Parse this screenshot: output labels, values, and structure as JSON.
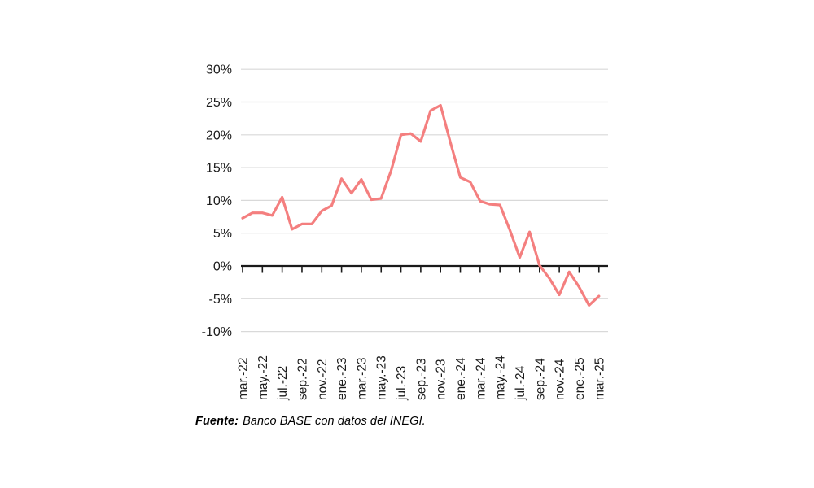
{
  "chart_data": {
    "type": "line",
    "title": "",
    "x": [
      "mar.-22",
      "abr.-22",
      "may.-22",
      "jun.-22",
      "jul.-22",
      "ago.-22",
      "sep.-22",
      "oct.-22",
      "nov.-22",
      "dic.-22",
      "ene.-23",
      "feb.-23",
      "mar.-23",
      "abr.-23",
      "may.-23",
      "jun.-23",
      "jul.-23",
      "ago.-23",
      "sep.-23",
      "oct.-23",
      "nov.-23",
      "dic.-23",
      "ene.-24",
      "feb.-24",
      "mar.-24",
      "abr.-24",
      "may.-24",
      "jun.-24",
      "jul.-24",
      "ago.-24",
      "sep.-24",
      "oct.-24",
      "nov.-24",
      "dic.-24",
      "ene.-25",
      "feb.-25",
      "mar.-25"
    ],
    "values": [
      7.3,
      8.1,
      8.1,
      7.7,
      10.5,
      5.6,
      6.4,
      6.4,
      8.4,
      9.2,
      13.3,
      11.1,
      13.2,
      10.1,
      10.3,
      14.5,
      20.0,
      20.2,
      19.0,
      23.7,
      24.5,
      18.8,
      13.5,
      12.8,
      9.9,
      9.4,
      9.3,
      5.5,
      1.3,
      5.2,
      0.1,
      -1.9,
      -4.4,
      -0.9,
      -3.2,
      -6.0,
      -4.6
    ],
    "x_tick_labels": [
      "mar.-22",
      "may.-22",
      "jul.-22",
      "sep.-22",
      "nov.-22",
      "ene.-23",
      "mar.-23",
      "may.-23",
      "jul.-23",
      "sep.-23",
      "nov.-23",
      "ene.-24",
      "mar.-24",
      "may.-24",
      "jul.-24",
      "sep.-24",
      "nov.-24",
      "ene.-25",
      "mar.-25"
    ],
    "y_ticks": [
      30,
      25,
      20,
      15,
      10,
      5,
      0,
      -5,
      -10
    ],
    "y_tick_labels": [
      "30%",
      "25%",
      "20%",
      "15%",
      "10%",
      "5%",
      "0%",
      "-5%",
      "-10%"
    ],
    "ylim": [
      -10,
      30
    ],
    "xlabel": "",
    "ylabel": "",
    "grid": true,
    "legend": false,
    "line_color": "#F47F7F"
  },
  "colors": {
    "line": "#F47F7F",
    "gridline": "#d9d9d9",
    "axis": "#1a1a1a",
    "label": "#1c1c1c",
    "background": "#ffffff"
  },
  "source": {
    "label": "Fuente:",
    "text": "Banco BASE con datos del INEGI."
  }
}
